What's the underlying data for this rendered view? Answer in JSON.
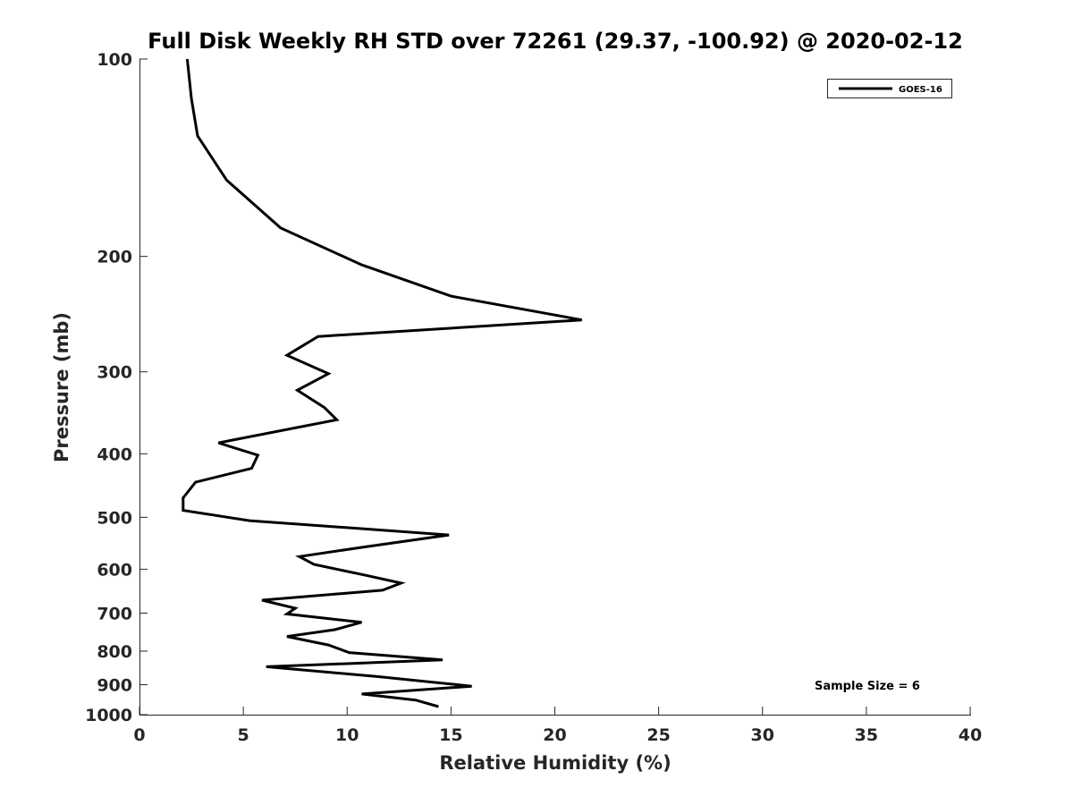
{
  "chart_data": {
    "type": "line",
    "title": "Full Disk Weekly RH STD over 72261 (29.37, -100.92) @ 2020-02-12",
    "xlabel": "Relative Humidity (%)",
    "ylabel": "Pressure (mb)",
    "xlim": [
      0,
      40
    ],
    "ylim": [
      100,
      1000
    ],
    "y_scale": "log",
    "y_reversed": true,
    "x_ticks": [
      0,
      5,
      10,
      15,
      20,
      25,
      30,
      35,
      40
    ],
    "y_ticks": [
      100,
      200,
      300,
      400,
      500,
      600,
      700,
      800,
      900,
      1000
    ],
    "grid": false,
    "legend_position": "top-right",
    "annotation": "Sample Size = 6",
    "series": [
      {
        "name": "GOES-16",
        "color": "#000000",
        "x": [
          2.3,
          2.5,
          2.8,
          4.2,
          6.8,
          10.7,
          15.0,
          21.3,
          8.6,
          7.1,
          9.1,
          7.6,
          8.9,
          9.5,
          3.8,
          5.7,
          5.4,
          2.7,
          2.1,
          2.1,
          5.3,
          14.9,
          10.8,
          7.7,
          8.4,
          10.8,
          12.6,
          11.7,
          5.9,
          7.5,
          7.1,
          10.7,
          9.4,
          7.1,
          9.1,
          10.1,
          14.6,
          6.1,
          11.5,
          16.0,
          10.7,
          13.3,
          14.4
        ],
        "y": [
          100,
          115,
          131,
          153,
          181,
          206,
          230,
          250,
          265,
          283,
          302,
          320,
          340,
          355,
          385,
          402,
          421,
          442,
          467,
          488,
          506,
          532,
          555,
          574,
          590,
          612,
          630,
          646,
          669,
          688,
          702,
          723,
          742,
          760,
          783,
          804,
          825,
          845,
          875,
          905,
          930,
          950,
          972
        ]
      }
    ]
  }
}
